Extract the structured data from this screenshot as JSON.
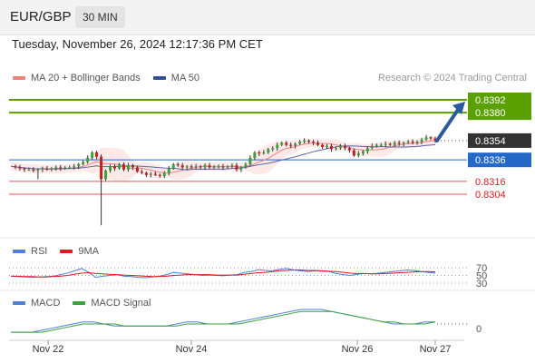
{
  "header": {
    "symbol": "EUR/GBP",
    "interval": "30 MIN"
  },
  "datetime": "Tuesday, November 26, 2024 12:17:36 PM CET",
  "credit": "Research © 2024 Trading Central",
  "legend": {
    "ma_bb": {
      "label": "MA 20 + Bollinger Bands",
      "color": "#f08080"
    },
    "ma50": {
      "label": "MA 50",
      "color": "#2b4f8f"
    }
  },
  "rsi_legend": {
    "rsi": {
      "label": "RSI",
      "color": "#4f7fd6"
    },
    "ma9": {
      "label": "9MA",
      "color": "#d81e1e"
    }
  },
  "macd_legend": {
    "macd": {
      "label": "MACD",
      "color": "#4f7fd6"
    },
    "signal": {
      "label": "MACD Signal",
      "color": "#3aa23a"
    }
  },
  "chart_data": [
    {
      "type": "candlestick",
      "x_ticks": [
        "Nov 22",
        "Nov 24",
        "Nov 26",
        "Nov 27"
      ],
      "levels": [
        {
          "value": 0.8392,
          "label": "0.8392",
          "kind": "resistance",
          "color": "#5aa000"
        },
        {
          "value": 0.838,
          "label": "0.8380",
          "kind": "resistance",
          "color": "#5aa000"
        },
        {
          "value": 0.8354,
          "label": "0.8354",
          "kind": "last-price",
          "color": "#333333"
        },
        {
          "value": 0.8336,
          "label": "0.8336",
          "kind": "pivot",
          "color": "#2468c8"
        },
        {
          "value": 0.8316,
          "label": "0.8316",
          "kind": "support",
          "color": "#d81e1e"
        },
        {
          "value": 0.8304,
          "label": "0.8304",
          "kind": "support",
          "color": "#d81e1e"
        }
      ],
      "trend_arrow": {
        "from": 0.8354,
        "to": 0.8392,
        "color": "#2c5aa0"
      },
      "price_path": [
        0.833,
        0.8329,
        0.8328,
        0.8327,
        0.8327,
        0.8326,
        0.8327,
        0.8328,
        0.8327,
        0.8328,
        0.8329,
        0.8328,
        0.8329,
        0.8329,
        0.833,
        0.8332,
        0.8334,
        0.8338,
        0.8343,
        0.8339,
        0.8318,
        0.8326,
        0.833,
        0.8328,
        0.8332,
        0.8327,
        0.8331,
        0.8329,
        0.8325,
        0.8324,
        0.8322,
        0.8323,
        0.8322,
        0.8321,
        0.8324,
        0.8328,
        0.8332,
        0.8331,
        0.8329,
        0.833,
        0.8329,
        0.833,
        0.8329,
        0.8331,
        0.8329,
        0.833,
        0.833,
        0.8329,
        0.833,
        0.8331,
        0.8327,
        0.8329,
        0.8332,
        0.8338,
        0.8343,
        0.8342,
        0.8343,
        0.8346,
        0.8347,
        0.835,
        0.8352,
        0.835,
        0.8349,
        0.8351,
        0.8353,
        0.8354,
        0.8353,
        0.8352,
        0.835,
        0.8348,
        0.8349,
        0.8346,
        0.8347,
        0.8349,
        0.8347,
        0.8345,
        0.834,
        0.8342,
        0.8344,
        0.8347,
        0.8349,
        0.835,
        0.835,
        0.8351,
        0.835,
        0.8352,
        0.8351,
        0.8352,
        0.8353,
        0.8352,
        0.8353,
        0.8355,
        0.8357,
        0.8356,
        0.8354
      ]
    },
    {
      "type": "line",
      "name": "RSI",
      "levels": [
        70,
        50,
        30
      ],
      "ylim": [
        20,
        80
      ],
      "series": [
        {
          "name": "RSI",
          "values": [
            48,
            47,
            46,
            45,
            46,
            47,
            48,
            52,
            56,
            62,
            68,
            58,
            45,
            48,
            50,
            52,
            48,
            47,
            45,
            44,
            46,
            48,
            52,
            58,
            56,
            54,
            52,
            50,
            51,
            50,
            49,
            51,
            52,
            58,
            60,
            65,
            63,
            62,
            66,
            68,
            64,
            62,
            60,
            62,
            61,
            60,
            55,
            52,
            50,
            53,
            55,
            54,
            56,
            58,
            60,
            62,
            64,
            63,
            60,
            58,
            56
          ]
        },
        {
          "name": "9MA",
          "values": [
            48,
            48,
            47,
            47,
            46,
            46,
            47,
            48,
            50,
            53,
            56,
            57,
            55,
            54,
            53,
            52,
            51,
            50,
            49,
            48,
            47,
            47,
            48,
            50,
            51,
            52,
            52,
            52,
            52,
            51,
            51,
            51,
            51,
            53,
            55,
            57,
            58,
            60,
            62,
            63,
            64,
            64,
            63,
            63,
            62,
            61,
            60,
            58,
            56,
            55,
            55,
            54,
            54,
            55,
            56,
            57,
            58,
            59,
            60,
            60,
            59
          ]
        }
      ]
    },
    {
      "type": "line",
      "name": "MACD",
      "levels": [
        0
      ],
      "ylim": [
        -0.0006,
        0.001
      ],
      "series": [
        {
          "name": "MACD",
          "values": [
            -0.0004,
            -0.0004,
            -0.0004,
            -0.0003,
            -0.0002,
            -0.0001,
            0.0,
            0.0001,
            0.0001,
            0.0,
            -0.0001,
            -0.0001,
            -0.0001,
            -0.0001,
            -0.0001,
            -0.0001,
            0.0,
            0.0001,
            0.0001,
            0.0,
            0.0,
            0.0,
            0.0001,
            0.0002,
            0.0003,
            0.0004,
            0.0005,
            0.0006,
            0.0007,
            0.0007,
            0.0007,
            0.0006,
            0.0005,
            0.0004,
            0.0003,
            0.0002,
            0.0001,
            0.0,
            0.0,
            0.0,
            0.0001,
            0.0001
          ]
        },
        {
          "name": "MACD Signal",
          "values": [
            -0.0004,
            -0.0004,
            -0.0004,
            -0.0004,
            -0.0003,
            -0.0002,
            -0.0001,
            0.0,
            0.0,
            0.0,
            0.0,
            -0.0001,
            -0.0001,
            -0.0001,
            -0.0001,
            -0.0001,
            -0.0001,
            0.0,
            0.0,
            0.0,
            0.0,
            0.0,
            0.0,
            0.0001,
            0.0002,
            0.0003,
            0.0004,
            0.0005,
            0.0006,
            0.0006,
            0.0006,
            0.0006,
            0.0005,
            0.0004,
            0.0003,
            0.0002,
            0.0001,
            0.0001,
            0.0,
            0.0,
            0.0,
            0.0001
          ]
        }
      ]
    }
  ]
}
